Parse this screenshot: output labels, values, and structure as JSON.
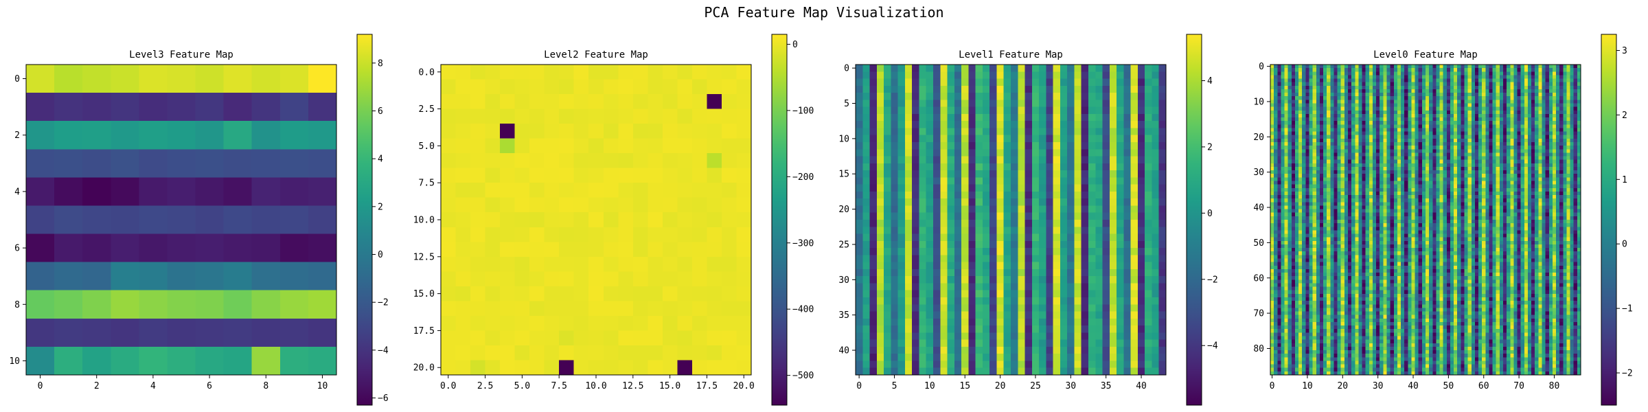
{
  "suptitle": "PCA Feature Map Visualization",
  "chart_data": [
    {
      "type": "heatmap",
      "title": "Level3 Feature Map",
      "size": 11,
      "xticks": [
        "0",
        "2",
        "4",
        "6",
        "8",
        "10"
      ],
      "yticks": [
        "0",
        "2",
        "4",
        "6",
        "8",
        "10"
      ],
      "colorbar_ticks": [
        "8",
        "6",
        "4",
        "2",
        "0",
        "−2",
        "−4",
        "−6"
      ],
      "colormap": "viridis",
      "vmin": -6.3,
      "vmax": 9.2,
      "row_values": [
        8.2,
        -4.2,
        1.5,
        -2.6,
        -5.0,
        -3.0,
        -5.4,
        -1.2,
        5.5,
        -3.8,
        3.0
      ],
      "row_patterns": [
        [
          8.2,
          7.6,
          7.8,
          8.0,
          8.4,
          8.3,
          8.1,
          8.5,
          8.2,
          8.4,
          9.2
        ],
        [
          -4.4,
          -4.0,
          -4.2,
          -3.9,
          -4.3,
          -4.1,
          -3.8,
          -4.5,
          -3.9,
          -3.2,
          -4.0
        ],
        [
          1.8,
          2.3,
          2.4,
          2.0,
          2.4,
          2.2,
          1.8,
          3.0,
          1.6,
          2.2,
          2.0
        ],
        [
          -2.6,
          -2.5,
          -2.7,
          -2.4,
          -2.8,
          -2.6,
          -2.5,
          -2.7,
          -2.6,
          -2.5,
          -2.6
        ],
        [
          -5.2,
          -5.8,
          -6.2,
          -5.9,
          -5.2,
          -5.0,
          -5.3,
          -5.6,
          -4.8,
          -5.0,
          -4.9
        ],
        [
          -3.2,
          -2.8,
          -3.0,
          -3.1,
          -2.9,
          -3.0,
          -3.2,
          -2.9,
          -3.1,
          -3.0,
          -3.3
        ],
        [
          -6.0,
          -5.2,
          -5.4,
          -5.0,
          -5.3,
          -5.1,
          -5.0,
          -5.2,
          -5.3,
          -5.8,
          -5.7
        ],
        [
          -1.4,
          -1.0,
          -1.2,
          0.4,
          0.2,
          -0.4,
          -0.2,
          0.2,
          -0.6,
          -0.8,
          -1.0
        ],
        [
          5.5,
          5.8,
          6.2,
          6.8,
          6.5,
          6.3,
          6.2,
          5.8,
          6.4,
          6.8,
          7.0
        ],
        [
          -3.8,
          -3.6,
          -3.7,
          -3.9,
          -3.6,
          -3.8,
          -3.7,
          -3.6,
          -3.8,
          -3.7,
          -3.9
        ],
        [
          1.2,
          3.4,
          2.6,
          3.2,
          3.8,
          3.4,
          3.0,
          2.8,
          6.8,
          3.4,
          3.2
        ]
      ]
    },
    {
      "type": "heatmap",
      "title": "Level2 Feature Map",
      "size": 21,
      "xticks": [
        "0.0",
        "2.5",
        "5.0",
        "7.5",
        "10.0",
        "12.5",
        "15.0",
        "17.5",
        "20.0"
      ],
      "yticks": [
        "0.0",
        "2.5",
        "5.0",
        "7.5",
        "10.0",
        "12.5",
        "15.0",
        "17.5",
        "20.0"
      ],
      "colorbar_ticks": [
        "0",
        "−100",
        "−200",
        "−300",
        "−400",
        "−500"
      ],
      "colormap": "viridis",
      "vmin": -545,
      "vmax": 15,
      "background_value": 0,
      "outliers": [
        {
          "row": 4,
          "col": 4,
          "value": -545
        },
        {
          "row": 2,
          "col": 18,
          "value": -545
        },
        {
          "row": 20,
          "col": 8,
          "value": -545
        },
        {
          "row": 20,
          "col": 16,
          "value": -545
        },
        {
          "row": 5,
          "col": 4,
          "value": -55
        },
        {
          "row": 6,
          "col": 18,
          "value": -40
        },
        {
          "row": 20,
          "col": 2,
          "value": -20
        },
        {
          "row": 18,
          "col": 8,
          "value": -12
        }
      ]
    },
    {
      "type": "heatmap",
      "title": "Level1 Feature Map",
      "size": 44,
      "xticks": [
        "0",
        "5",
        "10",
        "15",
        "20",
        "25",
        "30",
        "35",
        "40"
      ],
      "yticks": [
        "0",
        "5",
        "10",
        "15",
        "20",
        "25",
        "30",
        "35",
        "40"
      ],
      "colorbar_ticks": [
        "4",
        "2",
        "0",
        "−2",
        "−4"
      ],
      "colormap": "viridis",
      "vmin": -5.8,
      "vmax": 5.4,
      "column_pattern": [
        -1.5,
        0.5,
        -4.5,
        4.2,
        0.8,
        -1.8,
        0.2,
        4.5,
        -4.3,
        1.4,
        0.6,
        -3.0,
        4.6,
        1.0,
        -1.6,
        4.4,
        -4.4,
        1.6,
        0.9,
        -3.4,
        4.8,
        0.7,
        -1.2,
        4.3,
        -4.2,
        1.5,
        0.4,
        -3.6,
        4.7,
        0.6,
        -1.4,
        4.5,
        -4.5,
        1.3,
        0.8,
        -3.2,
        4.4,
        0.9,
        -1.6,
        4.6,
        -4.3,
        1.2,
        0.5,
        -4.0
      ]
    },
    {
      "type": "heatmap",
      "title": "Level0 Feature Map",
      "size": 88,
      "xticks": [
        "0",
        "10",
        "20",
        "30",
        "40",
        "50",
        "60",
        "70",
        "80"
      ],
      "yticks": [
        "0",
        "10",
        "20",
        "30",
        "40",
        "50",
        "60",
        "70",
        "80"
      ],
      "colorbar_ticks": [
        "3",
        "2",
        "1",
        "0",
        "−1",
        "−2"
      ],
      "colormap": "viridis",
      "vmin": -2.5,
      "vmax": 3.25
    }
  ]
}
